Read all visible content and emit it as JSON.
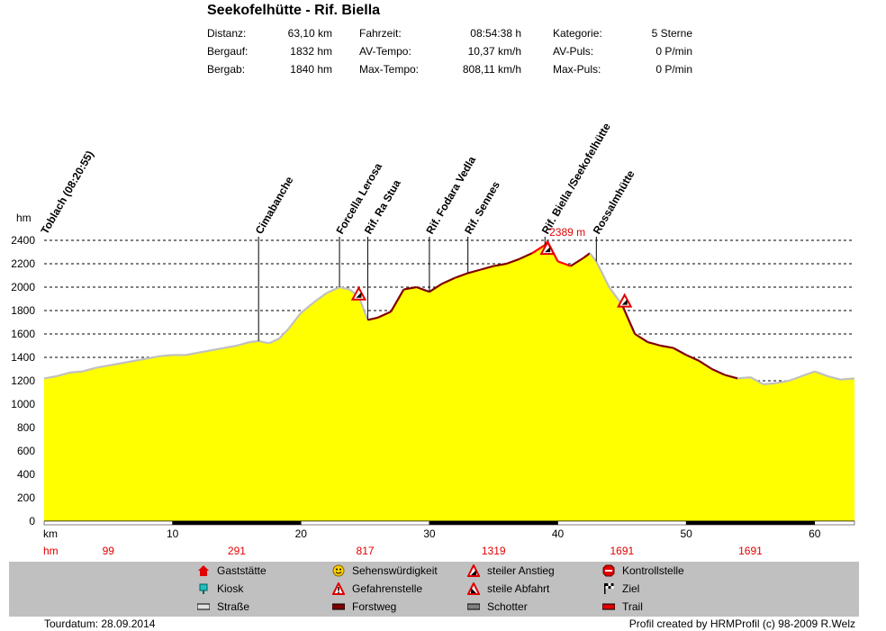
{
  "header": {
    "title": "Seekofelhütte - Rif. Biella",
    "stats": [
      {
        "label": "Distanz:",
        "value": "63,10 km"
      },
      {
        "label": "Bergauf:",
        "value": "1832 hm"
      },
      {
        "label": "Bergab:",
        "value": "1840 hm"
      },
      {
        "label": "Fahrzeit:",
        "value": "08:54:38 h"
      },
      {
        "label": "AV-Tempo:",
        "value": "10,37 km/h"
      },
      {
        "label": "Max-Tempo:",
        "value": "808,11 km/h"
      },
      {
        "label": "Kategorie:",
        "value": "5 Sterne"
      },
      {
        "label": "AV-Puls:",
        "value": "0 P/min"
      },
      {
        "label": "Max-Puls:",
        "value": "0 P/min"
      }
    ]
  },
  "chart_data": {
    "type": "area",
    "ylabel": "hm",
    "xlabel": "km",
    "xlim": [
      0,
      63.1
    ],
    "ylim": [
      0,
      2400
    ],
    "yticks": [
      0,
      200,
      400,
      600,
      800,
      1000,
      1200,
      1400,
      1600,
      1800,
      2000,
      2200,
      2400
    ],
    "xticks": [
      10,
      20,
      30,
      40,
      50,
      60
    ],
    "grid": "horizontal dashed",
    "fill_color": "#ffff00",
    "surface_colors": {
      "road": "#c0c0c0",
      "forest_track": "#800000",
      "steep": "#ff0000"
    },
    "profile": {
      "x": [
        0,
        1,
        2,
        3,
        4,
        5,
        6,
        7,
        8,
        9,
        10,
        11,
        12,
        13,
        14,
        15,
        16,
        16.7,
        17.5,
        18.3,
        19,
        20,
        21,
        22,
        23,
        23.8,
        24.5,
        25.2,
        26,
        27,
        28,
        29,
        30,
        31,
        32,
        33,
        34,
        35,
        36,
        37,
        38,
        39,
        39.2,
        40,
        41,
        42,
        42.5,
        43,
        44,
        45,
        46,
        47,
        48,
        49,
        50,
        51,
        52,
        53,
        54,
        55,
        56,
        57,
        58,
        59,
        60,
        61,
        62,
        63.1
      ],
      "y": [
        1220,
        1240,
        1270,
        1280,
        1310,
        1330,
        1350,
        1370,
        1390,
        1410,
        1420,
        1420,
        1440,
        1460,
        1480,
        1500,
        1530,
        1540,
        1520,
        1560,
        1640,
        1780,
        1870,
        1950,
        2000,
        1980,
        1920,
        1720,
        1740,
        1790,
        1980,
        2000,
        1960,
        2030,
        2080,
        2120,
        2150,
        2180,
        2200,
        2240,
        2290,
        2360,
        2389,
        2220,
        2180,
        2250,
        2290,
        2220,
        2000,
        1850,
        1600,
        1530,
        1500,
        1480,
        1420,
        1370,
        1300,
        1250,
        1220,
        1230,
        1170,
        1180,
        1200,
        1240,
        1280,
        1240,
        1210,
        1220
      ]
    },
    "max_label": "2389 m",
    "waypoints": [
      {
        "km": 0,
        "name": "Toblach (08:20:55)"
      },
      {
        "km": 16.7,
        "name": "Cimabanche"
      },
      {
        "km": 23,
        "name": "Forcella Lerosa"
      },
      {
        "km": 25.2,
        "name": "Rif. Ra Stua"
      },
      {
        "km": 30,
        "name": "Rif. Fodara Vedla"
      },
      {
        "km": 33,
        "name": "Rif. Sennes"
      },
      {
        "km": 39,
        "name": "Rif. Biella /Seekofelhütte"
      },
      {
        "km": 43,
        "name": "Rossalmhütte"
      }
    ],
    "hazards": [
      {
        "km": 24.5,
        "alt": 1940
      },
      {
        "km": 39.2,
        "alt": 2330
      },
      {
        "km": 45.2,
        "alt": 1880
      }
    ],
    "climbs": {
      "label": "hm",
      "items": [
        {
          "km": 5,
          "value": "99"
        },
        {
          "km": 15,
          "value": "291"
        },
        {
          "km": 25,
          "value": "817"
        },
        {
          "km": 35,
          "value": "1319"
        },
        {
          "km": 45,
          "value": "1691"
        },
        {
          "km": 55,
          "value": "1691"
        }
      ]
    }
  },
  "legend": [
    {
      "icon": "gasthaus-icon",
      "label": "Gaststätte"
    },
    {
      "icon": "kiosk-icon",
      "label": "Kiosk"
    },
    {
      "icon": "strasse-swatch",
      "label": "Straße"
    },
    {
      "icon": "smiley-icon",
      "label": "Sehenswürdigkeit"
    },
    {
      "icon": "danger-icon",
      "label": "Gefahrenstelle"
    },
    {
      "icon": "forstweg-swatch",
      "label": "Forstweg"
    },
    {
      "icon": "steep-up-icon",
      "label": "steiler Anstieg"
    },
    {
      "icon": "steep-down-icon",
      "label": "steile Abfahrt"
    },
    {
      "icon": "schotter-swatch",
      "label": "Schotter"
    },
    {
      "icon": "stop-icon",
      "label": "Kontrollstelle"
    },
    {
      "icon": "finish-flag-icon",
      "label": "Ziel"
    },
    {
      "icon": "trail-swatch",
      "label": "Trail"
    }
  ],
  "footer": {
    "left": "Tourdatum: 28.09.2014",
    "right": "Profil created by HRMProfil (c) 98-2009 R.Welz"
  }
}
